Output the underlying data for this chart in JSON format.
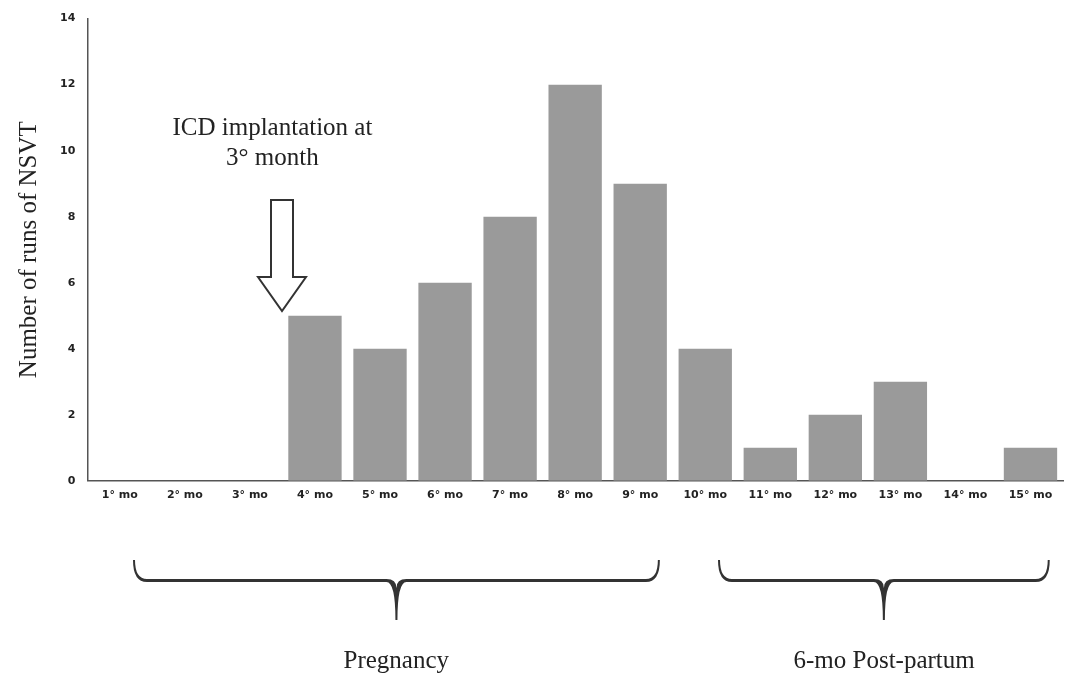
{
  "chart_data": {
    "type": "bar",
    "ylabel": "Number of runs of NSVT",
    "categories": [
      "1° mo",
      "2° mo",
      "3° mo",
      "4° mo",
      "5° mo",
      "6° mo",
      "7° mo",
      "8° mo",
      "9° mo",
      "10° mo",
      "11° mo",
      "12° mo",
      "13° mo",
      "14° mo",
      "15° mo"
    ],
    "values": [
      0,
      0,
      0,
      5,
      4,
      6,
      8,
      12,
      9,
      4,
      1,
      2,
      3,
      0,
      1
    ],
    "color": "#9a9a9a",
    "ylim": [
      0,
      14
    ],
    "yticks": [
      0,
      2,
      4,
      6,
      8,
      10,
      12,
      14
    ],
    "grid": false,
    "legend": false,
    "annotations": [
      "ICD implantation at 3° month",
      "Pregnancy",
      "6-mo Post-partum"
    ]
  }
}
